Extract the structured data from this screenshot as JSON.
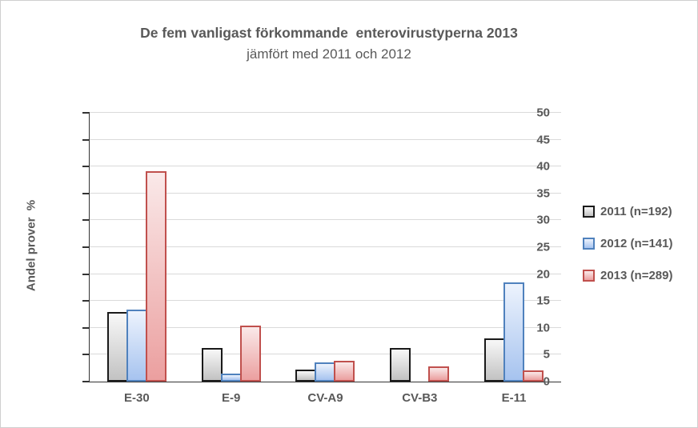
{
  "title": {
    "line1": "De fem vanligast förkommande  enterovirustyperna 2013",
    "line2": "jämfört med 2011 och 2012"
  },
  "chart_data": {
    "type": "bar",
    "title": "De fem vanligast förkommande enterovirustyperna 2013 jämfört med 2011 och 2012",
    "categories": [
      "E-30",
      "E-9",
      "CV-A9",
      "CV-B3",
      "E-11"
    ],
    "series": [
      {
        "name": "2011 (n=192)",
        "values": [
          13.0,
          6.3,
          2.2,
          6.3,
          8.0
        ],
        "border_color": "#1a1a1a",
        "fill_top": "#f8f8f8",
        "fill_bottom": "#c2c2c2"
      },
      {
        "name": "2012 (n=141)",
        "values": [
          13.4,
          1.5,
          3.6,
          0,
          18.5
        ],
        "border_color": "#4f81bd",
        "fill_top": "#edf3fd",
        "fill_bottom": "#a6c3ef"
      },
      {
        "name": "2013 (n=289)",
        "values": [
          39.2,
          10.4,
          3.9,
          2.8,
          2.1
        ],
        "border_color": "#c0504d",
        "fill_top": "#fae9e9",
        "fill_bottom": "#eb9f9f"
      }
    ],
    "xlabel": "",
    "ylabel": "Andel prover  %",
    "ylim": [
      0,
      50
    ],
    "ytick_step": 5,
    "grid": true,
    "legend_position": "right"
  },
  "colors": {
    "text": "#595959",
    "grid": "#dadada",
    "axis": "#333333",
    "frame": "#cfcfcf",
    "background": "#ffffff"
  }
}
